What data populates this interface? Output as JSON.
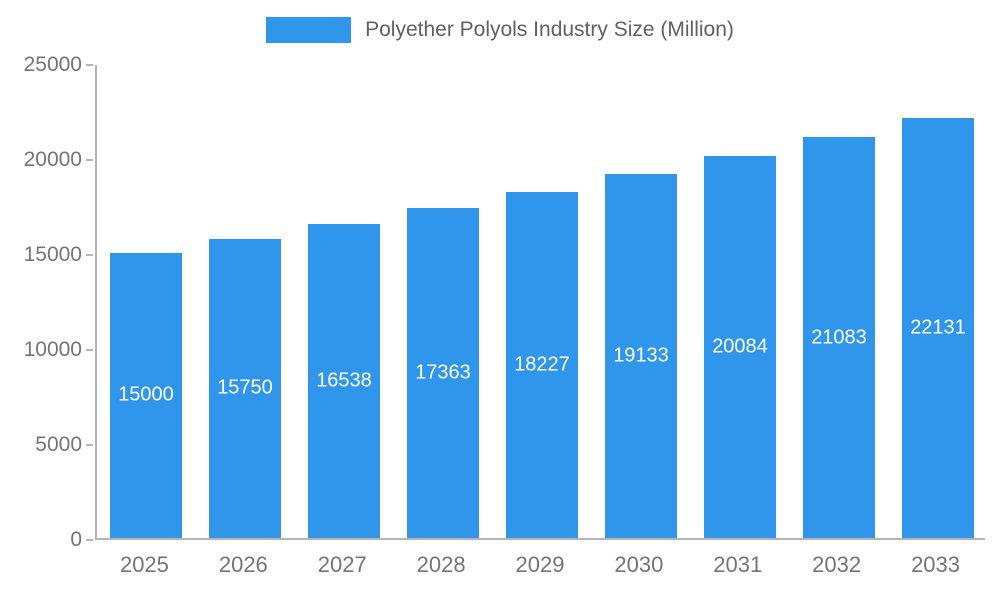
{
  "legend": {
    "title": "Polyether Polyols Industry Size (Million)"
  },
  "colors": {
    "bar": "#2f96ec",
    "bar_label": "#ffffff",
    "axis": "#b5b5b5",
    "tick_label": "#757575",
    "legend_text": "#616161",
    "background": "#ffffff"
  },
  "chart_data": {
    "type": "bar",
    "title": "Polyether Polyols Industry Size (Million)",
    "categories": [
      "2025",
      "2026",
      "2027",
      "2028",
      "2029",
      "2030",
      "2031",
      "2032",
      "2033"
    ],
    "values": [
      15000,
      15750,
      16538,
      17363,
      18227,
      19133,
      20084,
      21083,
      22131
    ],
    "xlabel": "",
    "ylabel": "",
    "ylim": [
      0,
      25000
    ],
    "yticks": [
      0,
      5000,
      10000,
      15000,
      20000,
      25000
    ],
    "grid": false,
    "legend_position": "top",
    "data_labels": "inside-white"
  }
}
